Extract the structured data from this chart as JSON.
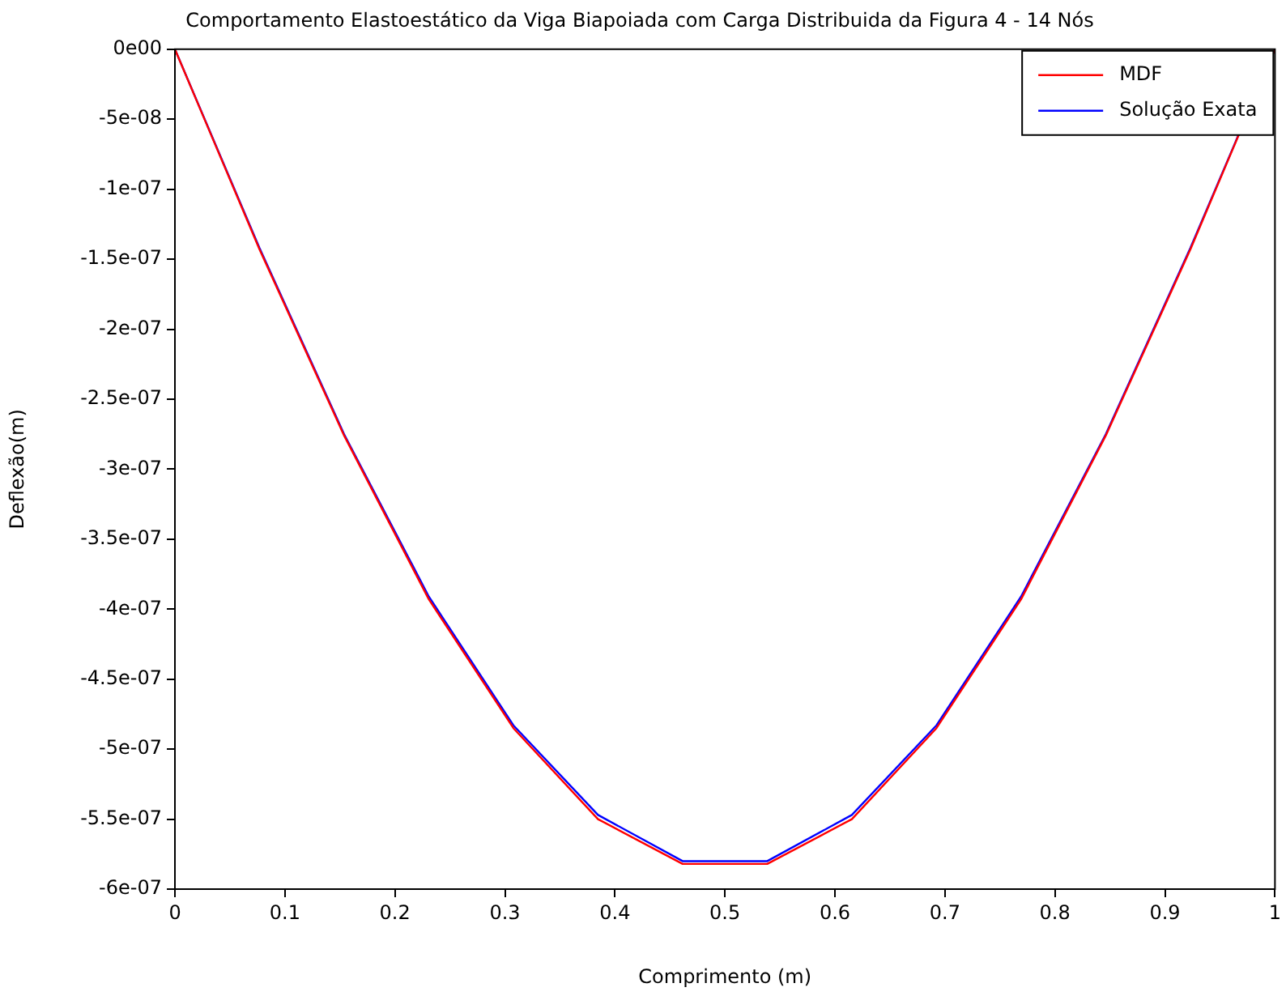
{
  "chart_data": {
    "type": "line",
    "title": "Comportamento Elastoestático da Viga Biapoiada com Carga Distribuida da Figura 4 - 14 Nós",
    "xlabel": "Comprimento (m)",
    "ylabel": "Deflexão(m)",
    "x": [
      0,
      0.0769,
      0.1538,
      0.2308,
      0.3077,
      0.3846,
      0.4615,
      0.5385,
      0.6154,
      0.6923,
      0.7692,
      0.8462,
      0.9231,
      1
    ],
    "series": [
      {
        "name": "MDF",
        "color": "#ff0000",
        "values": [
          0,
          -1.43e-07,
          -2.76e-07,
          -3.93e-07,
          -4.85e-07,
          -5.5e-07,
          -5.82e-07,
          -5.82e-07,
          -5.5e-07,
          -4.85e-07,
          -3.93e-07,
          -2.76e-07,
          -1.43e-07,
          0
        ]
      },
      {
        "name": "Solução Exata",
        "color": "#0000ff",
        "values": [
          0,
          -1.42e-07,
          -2.75e-07,
          -3.91e-07,
          -4.83e-07,
          -5.47e-07,
          -5.8e-07,
          -5.8e-07,
          -5.47e-07,
          -4.83e-07,
          -3.91e-07,
          -2.75e-07,
          -1.42e-07,
          0
        ]
      }
    ],
    "xlim": [
      0,
      1
    ],
    "xticks": [
      0,
      0.1,
      0.2,
      0.3,
      0.4,
      0.5,
      0.6,
      0.7,
      0.8,
      0.9,
      1
    ],
    "ylim": [
      -6e-07,
      0
    ],
    "yticks": [
      {
        "value": 0,
        "label": "0e00"
      },
      {
        "value": -5e-08,
        "label": "-5e-08"
      },
      {
        "value": -1e-07,
        "label": "-1e-07"
      },
      {
        "value": -1.5e-07,
        "label": "-1.5e-07"
      },
      {
        "value": -2e-07,
        "label": "-2e-07"
      },
      {
        "value": -2.5e-07,
        "label": "-2.5e-07"
      },
      {
        "value": -3e-07,
        "label": "-3e-07"
      },
      {
        "value": -3.5e-07,
        "label": "-3.5e-07"
      },
      {
        "value": -4e-07,
        "label": "-4e-07"
      },
      {
        "value": -4.5e-07,
        "label": "-4.5e-07"
      },
      {
        "value": -5e-07,
        "label": "-5e-07"
      },
      {
        "value": -5.5e-07,
        "label": "-5.5e-07"
      },
      {
        "value": -6e-07,
        "label": "-6e-07"
      }
    ],
    "grid": false,
    "legend": "top right",
    "marker": "none",
    "line_style": "solid"
  }
}
